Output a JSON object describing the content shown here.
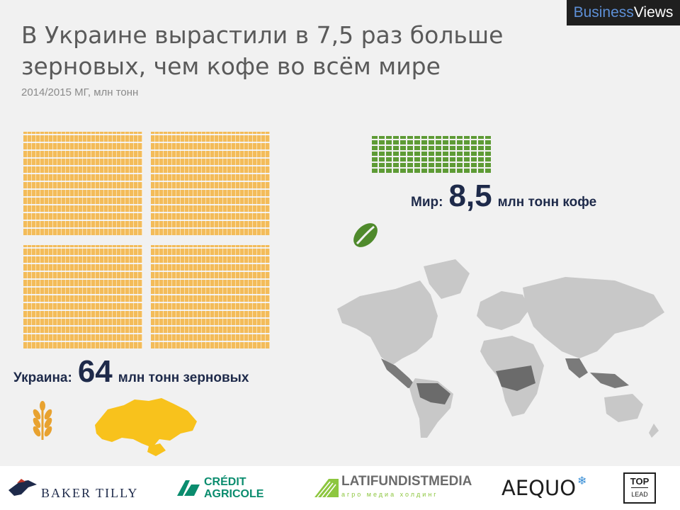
{
  "brand": {
    "part1": "Business",
    "part2": "Views"
  },
  "title": "В Украине вырастили в 7,5 раз больше зерновых, чем кофе во всём мире",
  "subtitle": "2014/2015 МГ, млн тонн",
  "world": {
    "label": "Мир:",
    "value": "8,5",
    "unit": "млн тонн кофе"
  },
  "ukraine": {
    "label": "Украина:",
    "value": "64",
    "unit": "млн тонн зерновых"
  },
  "colors": {
    "grain": "#f3bc5a",
    "coffee": "#5e9b35",
    "ukraine_map": "#f8c21c",
    "highlight_dark": "#1e2a4a",
    "map_land": "#c8c8c8",
    "map_producers": "#6b6b6b"
  },
  "icons": {
    "wheat": "wheat-icon",
    "coffee": "coffee-bean-icon",
    "ukraine": "ukraine-map-icon",
    "world": "world-map-icon"
  },
  "sponsors": {
    "baker_tilly": "BAKER TILLY",
    "credit_agricole_1": "CRÉDIT",
    "credit_agricole_2": "AGRICOLE",
    "latifundist": "LATIFUNDISTMEDIA",
    "latifundist_sub": "агро медиа холдинг",
    "aequo": "AEQUO",
    "toplead_1": "TOP",
    "toplead_2": "LEAD"
  }
}
